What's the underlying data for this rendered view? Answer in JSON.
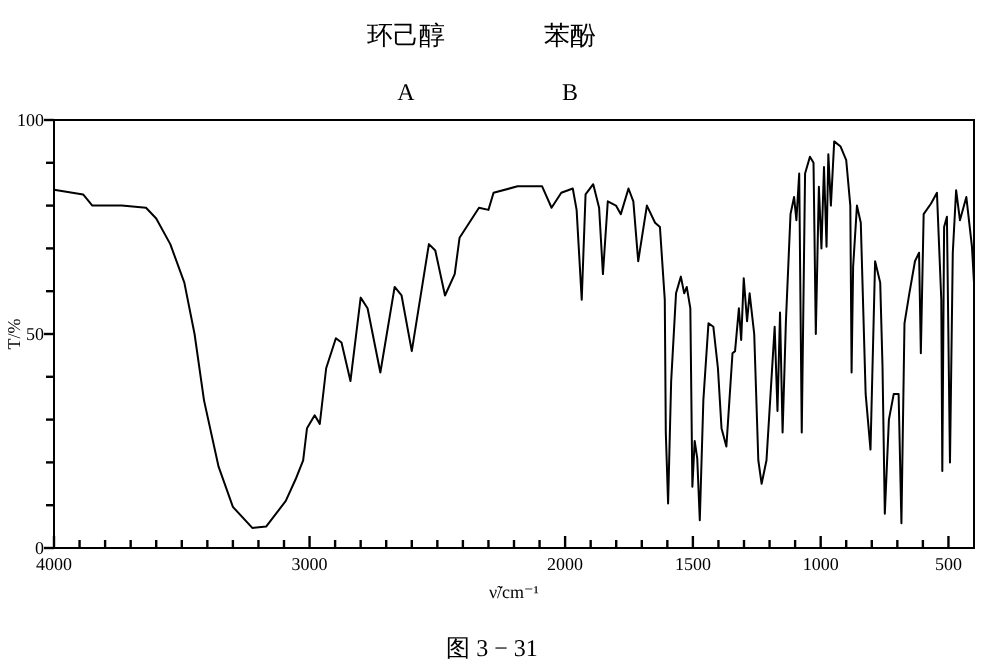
{
  "chart_data": {
    "type": "line",
    "xlabel": "ν̃/cm⁻¹",
    "ylabel": "T/%",
    "annotations": [
      "环己醇",
      "A",
      "苯酚",
      "B",
      "图 3 − 31"
    ],
    "xlim": [
      4000,
      400
    ],
    "ylim": [
      0,
      100
    ],
    "xticks": [
      4000,
      {
        "value": 3900,
        "label": null
      },
      {
        "value": 3800,
        "label": null
      },
      {
        "value": 3700,
        "label": null
      },
      {
        "value": 3600,
        "label": null
      },
      {
        "value": 3500,
        "label": null
      },
      {
        "value": 3400,
        "label": null
      },
      {
        "value": 3300,
        "label": null
      },
      {
        "value": 3200,
        "label": null
      },
      {
        "value": 3100,
        "label": null
      },
      3000,
      {
        "value": 2900,
        "label": null
      },
      {
        "value": 2800,
        "label": null
      },
      {
        "value": 2700,
        "label": null
      },
      {
        "value": 2600,
        "label": null
      },
      {
        "value": 2500,
        "label": null
      },
      {
        "value": 2400,
        "label": null
      },
      {
        "value": 2300,
        "label": null
      },
      {
        "value": 2200,
        "label": null
      },
      {
        "value": 2100,
        "label": null
      },
      2000,
      {
        "value": 1900,
        "label": null
      },
      {
        "value": 1800,
        "label": null
      },
      {
        "value": 1700,
        "label": null
      },
      {
        "value": 1600,
        "label": null
      },
      1500,
      {
        "value": 1400,
        "label": null
      },
      {
        "value": 1300,
        "label": null
      },
      {
        "value": 1200,
        "label": null
      },
      {
        "value": 1100,
        "label": null
      },
      1000,
      {
        "value": 900,
        "label": null
      },
      {
        "value": 800,
        "label": null
      },
      {
        "value": 700,
        "label": null
      },
      {
        "value": 600,
        "label": null
      },
      500
    ],
    "yticks": [
      0,
      {
        "value": 10,
        "label": null
      },
      {
        "value": 20,
        "label": null
      },
      {
        "value": 30,
        "label": null
      },
      {
        "value": 40,
        "label": null
      },
      50,
      {
        "value": 60,
        "label": null
      },
      {
        "value": 70,
        "label": null
      },
      {
        "value": 80,
        "label": null
      },
      {
        "value": 90,
        "label": null
      },
      100
    ],
    "series": [
      {
        "color": "#000000",
        "x": [
          4000,
          3886,
          3850,
          3735,
          3640,
          3600,
          3545,
          3490,
          3450,
          3413,
          3356,
          3300,
          3224,
          3170,
          3093,
          3055,
          3025,
          3010,
          2980,
          2960,
          2935,
          2897,
          2875,
          2840,
          2800,
          2773,
          2723,
          2667,
          2640,
          2600,
          2533,
          2508,
          2470,
          2432,
          2413,
          2375,
          2337,
          2300,
          2280,
          2186,
          2090,
          2053,
          2015,
          1970,
          1955,
          1935,
          1920,
          1890,
          1867,
          1852,
          1833,
          1801,
          1782,
          1752,
          1733,
          1714,
          1680,
          1648,
          1629,
          1610,
          1606,
          1597,
          1585,
          1566,
          1547,
          1534,
          1524,
          1510,
          1502,
          1493,
          1483,
          1473,
          1459,
          1439,
          1420,
          1402,
          1388,
          1369,
          1345,
          1335,
          1320,
          1311,
          1301,
          1288,
          1278,
          1260,
          1244,
          1231,
          1212,
          1180,
          1169,
          1159,
          1149,
          1136,
          1118,
          1104,
          1095,
          1084,
          1074,
          1061,
          1042,
          1028,
          1019,
          1007,
          997,
          987,
          977,
          970,
          960,
          947,
          922,
          900,
          884,
          879,
          873,
          858,
          843,
          824,
          805,
          787,
          767,
          758,
          749,
          733,
          714,
          695,
          684,
          672,
          653,
          631,
          615,
          608,
          597,
          568,
          545,
          528,
          524,
          517,
          506,
          494,
          483,
          470,
          455,
          430,
          408,
          400
        ],
        "values": [
          83.7,
          82.6,
          80,
          80,
          79.5,
          77,
          71,
          62,
          50,
          34.5,
          19,
          9.6,
          4.7,
          5,
          11,
          16,
          20.5,
          28,
          31,
          29,
          42,
          49,
          48,
          39,
          58.5,
          56,
          41,
          61,
          59,
          46,
          71,
          69.5,
          59,
          64,
          72.5,
          76,
          79.5,
          79,
          83,
          84.5,
          84.5,
          79.5,
          83,
          84,
          79,
          58,
          82.6,
          85,
          79.5,
          64,
          81,
          80,
          78,
          84,
          81,
          67,
          80,
          76,
          75,
          58,
          27,
          10.4,
          39,
          59.5,
          63.4,
          59.5,
          61,
          56,
          14.3,
          25,
          21,
          6.5,
          34.6,
          52.5,
          51.7,
          42,
          28,
          23.7,
          45.5,
          46,
          56,
          48.6,
          63,
          53,
          59.5,
          50,
          20.5,
          15,
          20.5,
          51.7,
          32,
          55,
          27,
          53,
          78,
          82,
          76.6,
          87.5,
          27,
          87.5,
          91.4,
          90,
          50,
          84.4,
          70,
          89,
          70.4,
          92,
          80,
          95,
          93.8,
          90.6,
          80,
          41,
          65.7,
          80,
          76,
          36,
          23,
          67,
          62,
          42.4,
          8,
          30,
          36,
          36,
          5.8,
          52.5,
          59.5,
          67,
          69,
          45.5,
          78,
          80.5,
          83,
          58,
          18,
          75,
          77.4,
          20,
          69,
          83.6,
          76.6,
          82,
          70.4,
          62
        ]
      }
    ]
  }
}
